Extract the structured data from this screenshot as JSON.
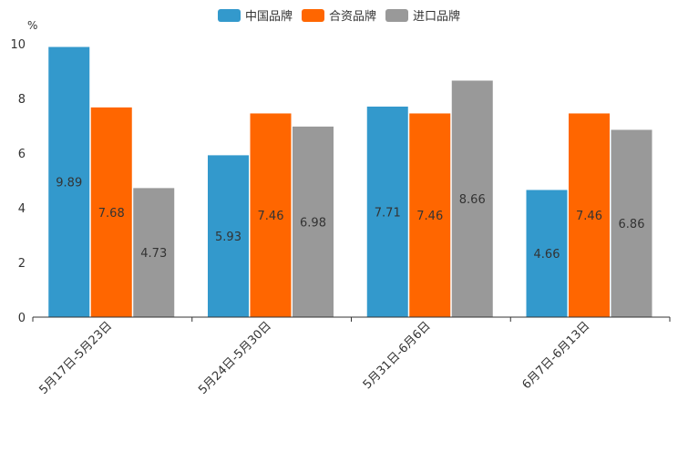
{
  "chart_data": {
    "type": "bar",
    "title": "",
    "unit": "%",
    "categories": [
      "5月17日-5月23日",
      "5月24日-5月30日",
      "5月31日-6月6日",
      "6月7日-6月13日"
    ],
    "series": [
      {
        "name": "中国品牌",
        "color": "#3399cc",
        "values": [
          9.89,
          5.93,
          7.71,
          4.66
        ]
      },
      {
        "name": "合资品牌",
        "color": "#ff6600",
        "values": [
          7.68,
          7.46,
          7.46,
          7.46
        ]
      },
      {
        "name": "进口品牌",
        "color": "#999999",
        "values": [
          4.73,
          6.98,
          8.66,
          6.86
        ]
      }
    ],
    "yticks": [
      0,
      2,
      4,
      6,
      8,
      10
    ],
    "ylim": [
      0,
      10
    ],
    "xlabel": "",
    "ylabel": "%",
    "legend_position": "top-center",
    "grid": false
  }
}
